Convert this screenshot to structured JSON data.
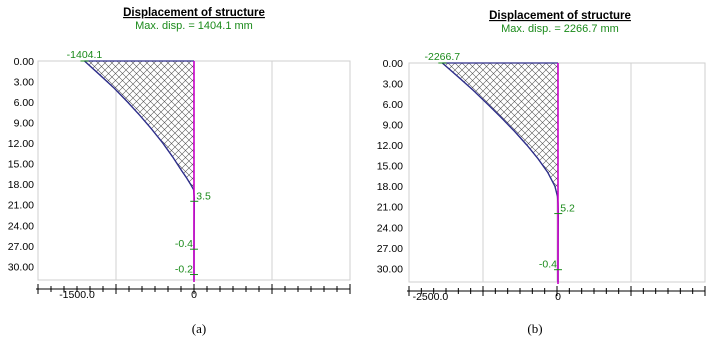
{
  "chart_data": [
    {
      "type": "area",
      "title": "Displacement of structure",
      "subtitle": "Max. disp. = 1404.1 mm",
      "caption": "(a)",
      "xlim": [
        -2000,
        2000
      ],
      "ylim": [
        0,
        32
      ],
      "x_tick_label": "-1500.0",
      "x_tick_value": -1500,
      "zero_tick_label": "0",
      "y_ticks": [
        "0.00",
        "3.00",
        "6.00",
        "9.00",
        "12.00",
        "15.00",
        "18.00",
        "21.00",
        "24.00",
        "27.00",
        "30.00"
      ],
      "profile": {
        "depth": [
          0,
          2,
          4,
          6,
          8,
          10,
          12,
          14,
          16,
          17,
          18,
          18.8,
          20,
          24,
          27.5,
          31.2,
          32
        ],
        "displacement": [
          -1404.1,
          -1210,
          -1020,
          -850,
          -690,
          -540,
          -400,
          -275,
          -160,
          -100,
          -45,
          -5,
          3.5,
          1,
          -0.4,
          -0.2,
          0
        ]
      },
      "annotations": [
        {
          "label": "-1404.1",
          "x": -1404.1,
          "y": 0
        },
        {
          "label": "3.5",
          "x": 3.5,
          "y": 20.5
        },
        {
          "label": "-0.4",
          "x": -0.4,
          "y": 27.5
        },
        {
          "label": "-0.2",
          "x": -0.2,
          "y": 31.2
        }
      ],
      "line_color": "#2e2e8a",
      "axis_color": "#c800c8",
      "label_color": "#1a8a1a"
    },
    {
      "type": "area",
      "title": "Displacement of structure",
      "subtitle": "Max. disp. = 2266.7 mm",
      "caption": "(b)",
      "xlim": [
        -2900,
        2900
      ],
      "ylim": [
        0,
        32
      ],
      "x_tick_label": "-2500.0",
      "x_tick_value": -2500,
      "zero_tick_label": "0",
      "y_ticks": [
        "0.00",
        "3.00",
        "6.00",
        "9.00",
        "12.00",
        "15.00",
        "18.00",
        "21.00",
        "24.00",
        "27.00",
        "30.00"
      ],
      "profile": {
        "depth": [
          0,
          2,
          4,
          6,
          8,
          10,
          12,
          14,
          16,
          18,
          19.5,
          20.5,
          22,
          26,
          30.2,
          32
        ],
        "displacement": [
          -2266.7,
          -1960,
          -1660,
          -1380,
          -1110,
          -850,
          -610,
          -390,
          -200,
          -60,
          -10,
          0,
          5.2,
          1,
          -0.4,
          0
        ]
      },
      "annotations": [
        {
          "label": "-2266.7",
          "x": -2266.7,
          "y": 0
        },
        {
          "label": "5.2",
          "x": 5.2,
          "y": 22
        },
        {
          "label": "-0.4",
          "x": -0.4,
          "y": 30.2
        }
      ],
      "line_color": "#2e2e8a",
      "axis_color": "#c800c8",
      "label_color": "#1a8a1a"
    }
  ]
}
